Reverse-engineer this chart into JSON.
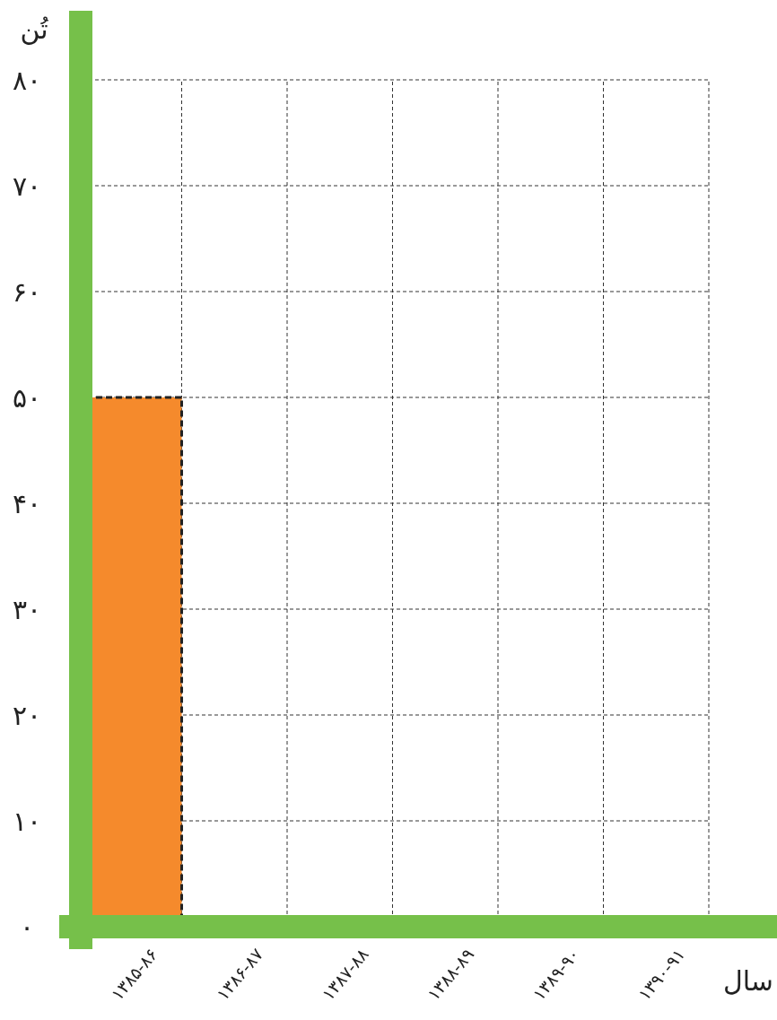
{
  "chart_data": {
    "type": "bar",
    "xlabel": "سال",
    "ylabel": "تُن",
    "categories": [
      "۱۳۸۵-۸۶",
      "۱۳۸۶-۸۷",
      "۱۳۸۷-۸۸",
      "۱۳۸۸-۸۹",
      "۱۳۸۹-۹۰",
      "۱۳۹۰-۹۱"
    ],
    "values": [
      50,
      null,
      null,
      null,
      null,
      null
    ],
    "color": "#f58a2c",
    "ylim": [
      0,
      80
    ],
    "yticks": [
      {
        "value": 0,
        "label": "۰"
      },
      {
        "value": 10,
        "label": "۱۰"
      },
      {
        "value": 20,
        "label": "۲۰"
      },
      {
        "value": 30,
        "label": "۳۰"
      },
      {
        "value": 40,
        "label": "۴۰"
      },
      {
        "value": 50,
        "label": "۵۰"
      },
      {
        "value": 60,
        "label": "۶۰"
      },
      {
        "value": 70,
        "label": "۷۰"
      },
      {
        "value": 80,
        "label": "۸۰"
      }
    ],
    "grid": true
  }
}
